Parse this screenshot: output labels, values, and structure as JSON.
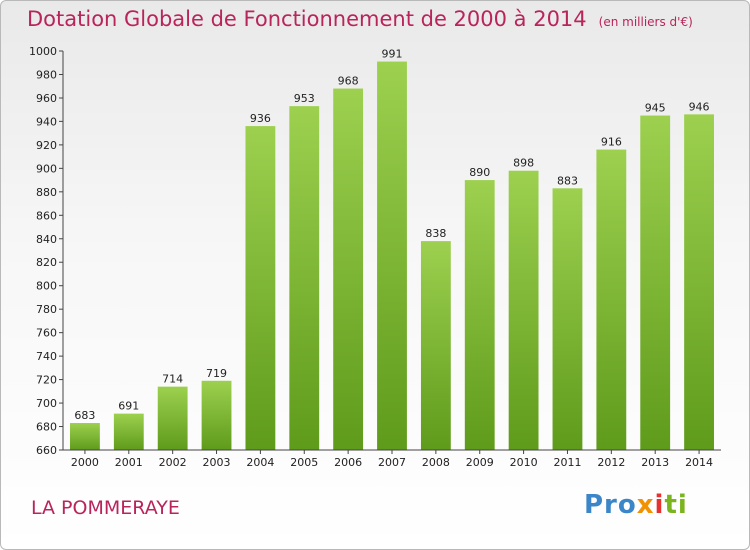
{
  "chart_data": {
    "type": "bar",
    "title": "Dotation Globale de Fonctionnement de 2000 à 2014",
    "subtitle": "(en milliers d'€)",
    "categories": [
      "2000",
      "2001",
      "2002",
      "2003",
      "2004",
      "2005",
      "2006",
      "2007",
      "2008",
      "2009",
      "2010",
      "2011",
      "2012",
      "2013",
      "2014"
    ],
    "values": [
      683,
      691,
      714,
      719,
      936,
      953,
      968,
      991,
      838,
      890,
      898,
      883,
      916,
      945,
      946
    ],
    "ylim": [
      660,
      1000
    ],
    "yticks": [
      660,
      680,
      700,
      720,
      740,
      760,
      780,
      800,
      820,
      840,
      860,
      880,
      900,
      920,
      940,
      960,
      980,
      1000
    ],
    "grid": false,
    "colors": {
      "bar_top": "#9dd04f",
      "bar_bottom": "#5f9b1b",
      "title": "#b9245b"
    }
  },
  "footer": {
    "place": "LA POMMERAYE",
    "logo_parts": [
      "Pro",
      "x",
      "i",
      "ti"
    ]
  }
}
